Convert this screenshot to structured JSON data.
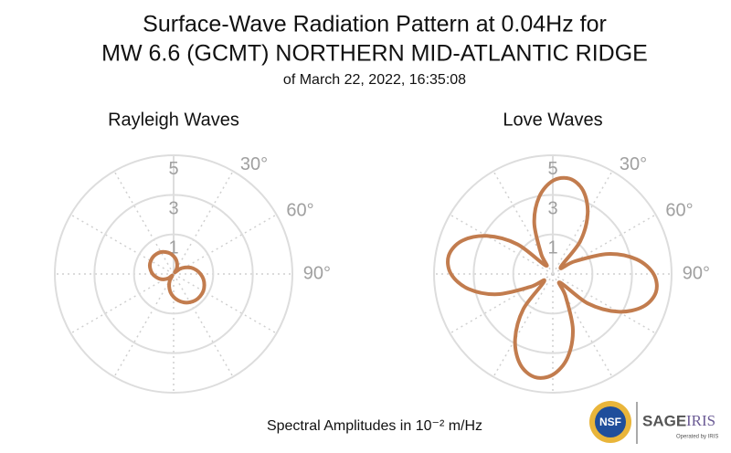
{
  "title": [
    "Surface-Wave Radiation Pattern at 0.04Hz for",
    "MW 6.6 (GCMT) NORTHERN MID-ATLANTIC RIDGE"
  ],
  "subtitle": "of March 22, 2022, 16:35:08",
  "footnote": "Spectral Amplitudes in 10⁻² m/Hz",
  "logos": {
    "nsf": "NSF",
    "sage": "SAGE",
    "iris": "IRIS",
    "operated": "Operated by IRIS"
  },
  "chart_data": [
    {
      "type": "polar",
      "title": "Rayleigh Waves",
      "color": "#c27c4e",
      "theta": [
        0,
        10,
        20,
        30,
        40,
        50,
        60,
        70,
        80,
        90,
        100,
        110,
        120,
        130,
        140,
        150,
        160,
        170,
        180,
        190,
        200,
        210,
        220,
        230,
        240,
        250,
        260,
        270,
        280,
        290,
        300,
        310,
        320,
        330,
        340,
        350
      ],
      "values": [
        0.9,
        0.73,
        0.53,
        0.32,
        0.1,
        0.39,
        0.66,
        0.93,
        1.16,
        1.36,
        1.53,
        1.65,
        1.73,
        1.75,
        1.73,
        1.65,
        1.53,
        1.36,
        1.16,
        0.93,
        0.66,
        0.39,
        0.1,
        0.32,
        0.53,
        0.73,
        0.9,
        1.06,
        1.18,
        1.28,
        1.33,
        1.35,
        1.33,
        1.28,
        1.18,
        1.06
      ],
      "rlim": [
        0,
        6
      ],
      "rgrid": [
        2,
        4,
        6
      ],
      "rticks": [
        1,
        3,
        5
      ],
      "thetagrid": [
        0,
        30,
        60,
        90,
        120,
        150,
        180,
        210,
        240,
        270,
        300,
        330
      ],
      "thetaticks": [
        {
          "value": 30,
          "label": "30°"
        },
        {
          "value": 60,
          "label": "60°"
        },
        {
          "value": 90,
          "label": "90°"
        }
      ]
    },
    {
      "type": "polar",
      "title": "Love Waves",
      "color": "#c27c4e",
      "theta": [
        0,
        10,
        20,
        30,
        40,
        50,
        60,
        70,
        80,
        90,
        100,
        110,
        120,
        130,
        140,
        150,
        160,
        170,
        180,
        190,
        200,
        210,
        220,
        230,
        240,
        250,
        260,
        270,
        280,
        290,
        300,
        310,
        320,
        330,
        340,
        350
      ],
      "values": [
        4.71,
        4.89,
        4.48,
        3.52,
        2.15,
        0.51,
        1.28,
        2.96,
        4.29,
        5.09,
        5.29,
        4.84,
        3.81,
        2.32,
        0.56,
        1.28,
        2.96,
        4.29,
        5.09,
        5.29,
        4.84,
        3.81,
        2.32,
        0.56,
        1.29,
        2.99,
        4.33,
        5.14,
        5.34,
        4.89,
        3.85,
        2.34,
        0.56,
        1.19,
        2.74,
        3.96
      ],
      "rlim": [
        0,
        6
      ],
      "rgrid": [
        2,
        4,
        6
      ],
      "rticks": [
        1,
        3,
        5
      ],
      "thetagrid": [
        0,
        30,
        60,
        90,
        120,
        150,
        180,
        210,
        240,
        270,
        300,
        330
      ],
      "thetaticks": [
        {
          "value": 30,
          "label": "30°"
        },
        {
          "value": 60,
          "label": "60°"
        },
        {
          "value": 90,
          "label": "90°"
        }
      ]
    }
  ]
}
